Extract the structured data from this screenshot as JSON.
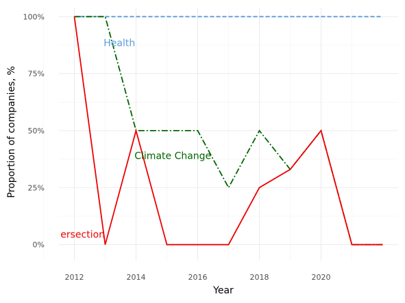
{
  "chart_data": {
    "type": "line",
    "xlabel": "Year",
    "ylabel": "Proportion of companies, %",
    "x_ticks": [
      "2012",
      "2014",
      "2016",
      "2018",
      "2020"
    ],
    "y_ticks": [
      "0%",
      "25%",
      "50%",
      "75%",
      "100%"
    ],
    "xlim": [
      2011.5,
      2022.5
    ],
    "ylim": [
      -7,
      104
    ],
    "grid": true,
    "legend": "none",
    "x": [
      2012,
      2013,
      2014,
      2015,
      2016,
      2017,
      2018,
      2019,
      2020,
      2021,
      2022
    ],
    "series": [
      {
        "values": [
          100,
          100,
          100,
          100,
          100,
          100,
          100,
          100,
          100,
          100,
          100
        ],
        "color": "#5b9bdc",
        "dash": "dashed"
      },
      {
        "values": [
          100,
          100,
          50,
          50,
          50,
          25,
          50,
          33,
          50,
          0,
          0
        ],
        "color": "#006400",
        "dash": "dotdash"
      },
      {
        "values": [
          100,
          0,
          50,
          0,
          0,
          0,
          25,
          33,
          50,
          0,
          0
        ],
        "color": "#ee0000",
        "dash": "solid"
      }
    ],
    "annotations": [
      {
        "text": "Health",
        "x": 2012.95,
        "y": 88.5,
        "color": "#5b9bdc"
      },
      {
        "text": "Climate Change",
        "x": 2013.95,
        "y": 39,
        "color": "#006400"
      },
      {
        "text": "ersection",
        "x": 2011.55,
        "y": 4.5,
        "color": "#ee0000"
      }
    ]
  }
}
